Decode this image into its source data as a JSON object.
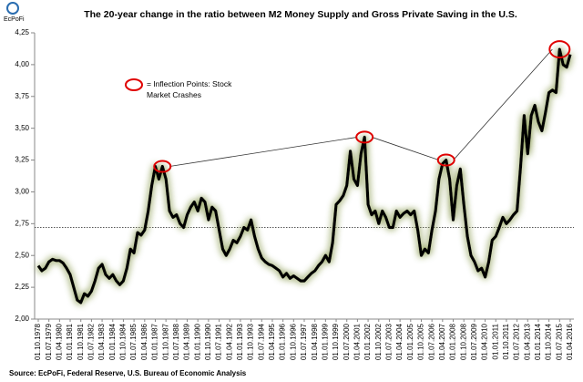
{
  "logo": "EcPoFi",
  "chart_data": {
    "type": "line",
    "title": "The 20-year change in the ratio between M2 Money Supply and Gross Private Saving in the U.S.",
    "annotation": "= Inflection Points: Stock Market Crashes",
    "source": "Source: EcPoFi,  Federal Reserve, U.S. Bureau of Economic Analysis",
    "ylim": [
      2.0,
      4.25
    ],
    "yticks": [
      {
        "value": 2.0,
        "label": "2,00"
      },
      {
        "value": 2.25,
        "label": "2,25"
      },
      {
        "value": 2.5,
        "label": "2,50"
      },
      {
        "value": 2.75,
        "label": "2,75"
      },
      {
        "value": 3.0,
        "label": "3,00"
      },
      {
        "value": 3.25,
        "label": "3,25"
      },
      {
        "value": 3.5,
        "label": "3,50"
      },
      {
        "value": 3.75,
        "label": "3,75"
      },
      {
        "value": 4.0,
        "label": "4,00"
      },
      {
        "value": 4.25,
        "label": "4,25"
      }
    ],
    "reference_line": 2.72,
    "grid": false,
    "categories": [
      "01.10.1978",
      null,
      null,
      "01.07.1979",
      null,
      null,
      "01.04.1980",
      null,
      null,
      "01.01.1981",
      null,
      null,
      "01.10.1981",
      null,
      null,
      "01.07.1982",
      null,
      null,
      "01.04.1983",
      null,
      null,
      "01.01.1984",
      null,
      null,
      "01.10.1984",
      null,
      null,
      "01.07.1985",
      null,
      null,
      "01.04.1986",
      null,
      null,
      "01.01.1987",
      null,
      null,
      "01.10.1987",
      null,
      null,
      "01.07.1988",
      null,
      null,
      "01.04.1989",
      null,
      null,
      "01.01.1990",
      null,
      null,
      "01.10.1990",
      null,
      null,
      "01.07.1991",
      null,
      null,
      "01.04.1992",
      null,
      null,
      "01.01.1993",
      null,
      null,
      "01.10.1993",
      null,
      null,
      "01.07.1994",
      null,
      null,
      "01.04.1995",
      null,
      null,
      "01.01.1996",
      null,
      null,
      "01.10.1996",
      null,
      null,
      "01.07.1997",
      null,
      null,
      "01.04.1998",
      null,
      null,
      "01.01.1999",
      null,
      null,
      "01.10.1999",
      null,
      null,
      "01.07.2000",
      null,
      null,
      "01.04.2001",
      null,
      null,
      "01.01.2002",
      null,
      null,
      "01.10.2002",
      null,
      null,
      "01.07.2003",
      null,
      null,
      "01.04.2004",
      null,
      null,
      "01.01.2005",
      null,
      null,
      "01.10.2005",
      null,
      null,
      "01.07.2006",
      null,
      null,
      "01.04.2007",
      null,
      null,
      "01.01.2008",
      null,
      null,
      "01.10.2008",
      null,
      null,
      "01.07.2009",
      null,
      null,
      "01.04.2010",
      null,
      null,
      "01.01.2011",
      null,
      null,
      "01.10.2011",
      null,
      null,
      "01.07.2012",
      null,
      null,
      "01.04.2013",
      null,
      null,
      "01.01.2014",
      null,
      null,
      "01.10.2014",
      null,
      null,
      "01.07.2015",
      null,
      null,
      "01.04.2016"
    ],
    "series": [
      {
        "color": "#000000",
        "values": [
          2.42,
          2.38,
          2.4,
          2.45,
          2.47,
          2.46,
          2.46,
          2.44,
          2.4,
          2.35,
          2.25,
          2.15,
          2.13,
          2.2,
          2.18,
          2.22,
          2.3,
          2.4,
          2.43,
          2.35,
          2.32,
          2.35,
          2.3,
          2.27,
          2.3,
          2.4,
          2.55,
          2.52,
          2.68,
          2.66,
          2.7,
          2.85,
          3.05,
          3.2,
          3.1,
          3.2,
          3.1,
          2.85,
          2.8,
          2.82,
          2.75,
          2.72,
          2.82,
          2.88,
          2.92,
          2.85,
          2.95,
          2.92,
          2.78,
          2.88,
          2.85,
          2.7,
          2.55,
          2.5,
          2.55,
          2.62,
          2.6,
          2.65,
          2.72,
          2.7,
          2.78,
          2.65,
          2.55,
          2.48,
          2.45,
          2.43,
          2.42,
          2.4,
          2.38,
          2.33,
          2.36,
          2.32,
          2.34,
          2.32,
          2.3,
          2.3,
          2.33,
          2.36,
          2.38,
          2.42,
          2.45,
          2.5,
          2.45,
          2.6,
          2.9,
          2.93,
          2.97,
          3.05,
          3.32,
          3.1,
          3.05,
          3.3,
          3.43,
          2.9,
          2.82,
          2.85,
          2.75,
          2.85,
          2.8,
          2.72,
          2.72,
          2.85,
          2.8,
          2.83,
          2.85,
          2.82,
          2.85,
          2.7,
          2.5,
          2.55,
          2.52,
          2.7,
          2.85,
          3.1,
          3.22,
          3.25,
          3.1,
          2.78,
          3.05,
          3.18,
          2.9,
          2.65,
          2.5,
          2.45,
          2.38,
          2.4,
          2.33,
          2.45,
          2.62,
          2.65,
          2.72,
          2.8,
          2.75,
          2.78,
          2.82,
          2.85,
          3.2,
          3.6,
          3.3,
          3.6,
          3.68,
          3.55,
          3.48,
          3.62,
          3.78,
          3.8,
          3.78,
          4.12,
          4.0,
          3.98,
          4.08
        ]
      }
    ]
  }
}
